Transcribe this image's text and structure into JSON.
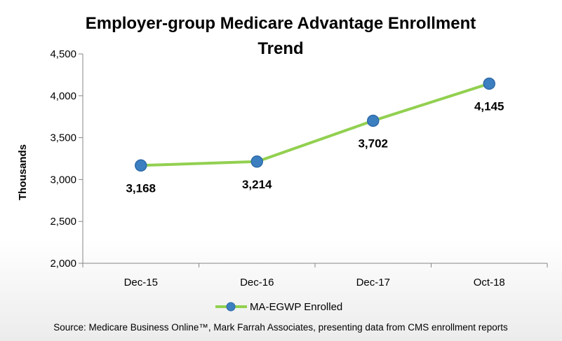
{
  "chart_data": {
    "type": "line",
    "title_line1": "Employer-group Medicare Advantage Enrollment",
    "title_line2": "Trend",
    "xlabel": "",
    "ylabel": "Thousands",
    "categories": [
      "Dec-15",
      "Dec-16",
      "Dec-17",
      "Oct-18"
    ],
    "series": [
      {
        "name": "MA-EGWP Enrolled",
        "values": [
          3168,
          3214,
          3702,
          4145
        ],
        "data_labels": [
          "3,168",
          "3,214",
          "3,702",
          "4,145"
        ],
        "line_color": "#92d050",
        "marker_color": "#3c7fc1"
      }
    ],
    "ylim": [
      2000,
      4500
    ],
    "yticks": [
      2000,
      2500,
      3000,
      3500,
      4000,
      4500
    ],
    "ytick_labels": [
      "2,000",
      "2,500",
      "3,000",
      "3,500",
      "4,000",
      "4,500"
    ],
    "grid": false,
    "legend_position": "bottom",
    "source_note": "Source: Medicare Business Online™, Mark Farrah Associates, presenting data from CMS enrollment reports"
  }
}
